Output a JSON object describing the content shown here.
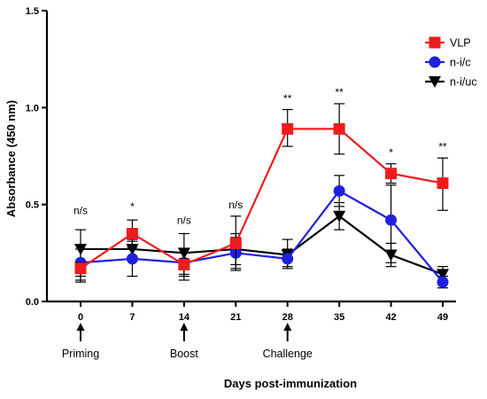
{
  "chart_data": {
    "type": "line",
    "xlabel": "Days post-immunization",
    "ylabel": "Absorbance (450 nm)",
    "x": [
      0,
      7,
      14,
      21,
      28,
      35,
      42,
      49
    ],
    "x_tick_labels": [
      "0",
      "7",
      "14",
      "21",
      "28",
      "35",
      "42",
      "49"
    ],
    "ylim": [
      0.0,
      1.5
    ],
    "y_ticks": [
      0.0,
      0.5,
      1.0,
      1.5
    ],
    "y_tick_labels": [
      "0.0",
      "0.5",
      "1.0",
      "1.5"
    ],
    "grid": false,
    "legend_position": "top-right",
    "series": [
      {
        "name": "VLP",
        "color": "#ee1c1c",
        "marker": "square",
        "values": [
          0.17,
          0.35,
          0.19,
          0.3,
          0.89,
          0.89,
          0.66,
          0.61
        ],
        "error_low": [
          0.11,
          0.28,
          0.14,
          0.16,
          0.8,
          0.76,
          0.61,
          0.47
        ],
        "error_high": [
          0.2,
          0.42,
          0.22,
          0.44,
          0.99,
          1.02,
          0.71,
          0.74
        ]
      },
      {
        "name": "n-i/c",
        "color": "#1f1fe0",
        "marker": "circle",
        "values": [
          0.2,
          0.22,
          0.2,
          0.25,
          0.22,
          0.57,
          0.42,
          0.1
        ],
        "error_low": [
          0.13,
          0.13,
          0.13,
          0.17,
          0.17,
          0.49,
          0.2,
          0.07
        ],
        "error_high": [
          0.27,
          0.31,
          0.27,
          0.33,
          0.27,
          0.65,
          0.6,
          0.13
        ]
      },
      {
        "name": "n-i/uc",
        "color": "#000000",
        "marker": "triangle-down",
        "values": [
          0.27,
          0.27,
          0.25,
          0.27,
          0.24,
          0.44,
          0.24,
          0.14
        ],
        "error_low": [
          0.1,
          0.22,
          0.11,
          0.19,
          0.18,
          0.37,
          0.18,
          0.1
        ],
        "error_high": [
          0.37,
          0.32,
          0.35,
          0.35,
          0.32,
          0.51,
          0.3,
          0.18
        ]
      }
    ],
    "significance": [
      {
        "x": 0,
        "label": "n/s",
        "y": 0.45
      },
      {
        "x": 7,
        "label": "*",
        "y": 0.47
      },
      {
        "x": 14,
        "label": "n/s",
        "y": 0.4
      },
      {
        "x": 21,
        "label": "n/s",
        "y": 0.48
      },
      {
        "x": 28,
        "label": "**",
        "y": 1.03
      },
      {
        "x": 35,
        "label": "**",
        "y": 1.06
      },
      {
        "x": 42,
        "label": "*",
        "y": 0.75
      },
      {
        "x": 49,
        "label": "**",
        "y": 0.78
      }
    ],
    "annotations": [
      {
        "x": 0,
        "label": "Priming"
      },
      {
        "x": 14,
        "label": "Boost"
      },
      {
        "x": 28,
        "label": "Challenge"
      }
    ]
  }
}
